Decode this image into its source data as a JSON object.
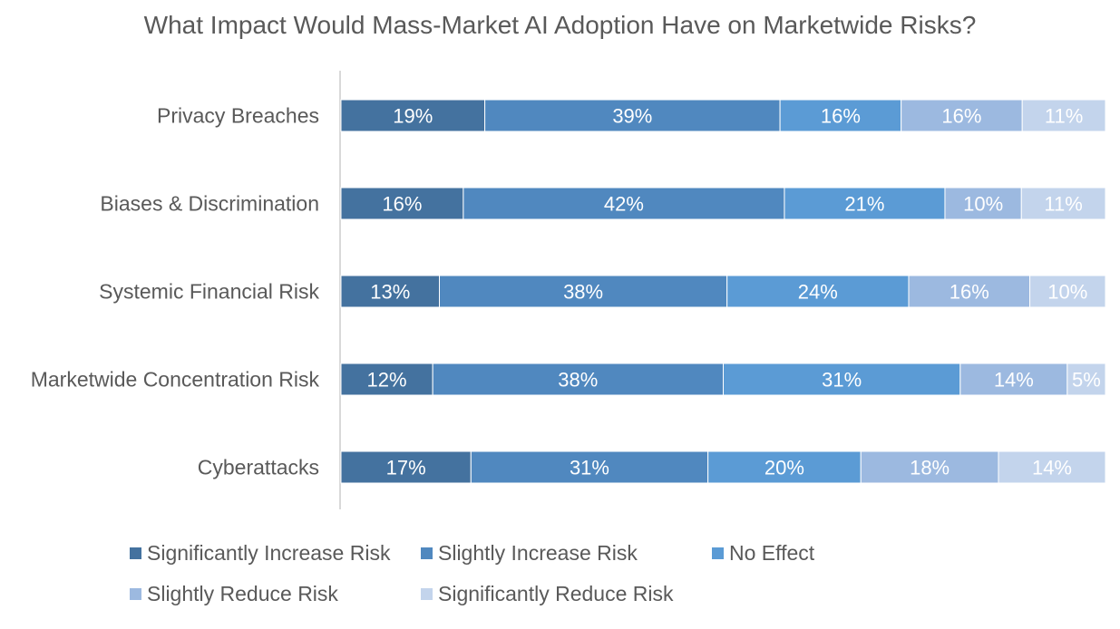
{
  "chart_data": {
    "type": "bar",
    "orientation": "horizontal",
    "stacked": true,
    "title": "What Impact Would Mass-Market AI Adoption Have on Marketwide Risks?",
    "categories": [
      "Privacy Breaches",
      "Biases & Discrimination",
      "Systemic Financial  Risk",
      "Marketwide Concentration Risk",
      "Cyberattacks"
    ],
    "series": [
      {
        "name": "Significantly Increase Risk",
        "color": "#44729f",
        "values": [
          19,
          16,
          13,
          12,
          17
        ]
      },
      {
        "name": "Slightly Increase Risk",
        "color": "#5088bf",
        "values": [
          39,
          42,
          38,
          38,
          31
        ]
      },
      {
        "name": "No Effect",
        "color": "#5b9bd5",
        "values": [
          16,
          21,
          24,
          31,
          20
        ]
      },
      {
        "name": "Slightly Reduce Risk",
        "color": "#9cb9e0",
        "values": [
          16,
          10,
          16,
          14,
          18
        ]
      },
      {
        "name": "Significantly Reduce Risk",
        "color": "#c3d4ec",
        "values": [
          11,
          11,
          10,
          5,
          14
        ]
      }
    ],
    "value_format": "percent",
    "grid": false,
    "legend_position": "bottom"
  }
}
